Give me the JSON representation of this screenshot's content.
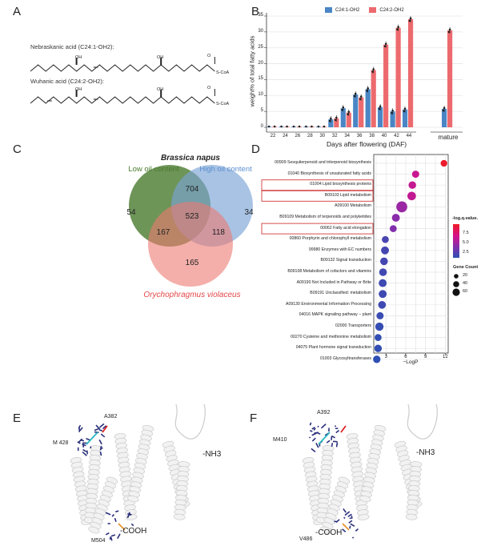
{
  "panels": {
    "a": "A",
    "b": "B",
    "c": "C",
    "d": "D",
    "e": "E",
    "f": "F"
  },
  "structures": {
    "nebraskanic": {
      "name": "Nebraskanic acid (C24:1-OH2):",
      "oh": "OH",
      "o": "O",
      "coa": "S-CoA"
    },
    "wuhanic": {
      "name": "Wuhanic acid (C24:2-OH2):",
      "oh": "OH",
      "o": "O",
      "coa": "S-CoA"
    }
  },
  "venn": {
    "title": "Brassica napus",
    "sets": [
      {
        "name": "Low oil content",
        "color": "#4a7a2e"
      },
      {
        "name": "High oil content",
        "color": "#5b8fd0"
      },
      {
        "name": "Orychophragmus violaceus",
        "color": "#e5474a"
      }
    ],
    "counts": {
      "low_only": "54",
      "low_high": "704",
      "high_only": "34",
      "all": "523",
      "low_ory": "167",
      "high_ory": "118",
      "ory_only": "165"
    }
  },
  "chart_data": [
    {
      "type": "bar",
      "xlabel": "Days after flowering (DAF)",
      "ylabel": "weight% of total fatty acids",
      "categories": [
        "22",
        "24",
        "26",
        "28",
        "30",
        "32",
        "34",
        "36",
        "38",
        "40",
        "42",
        "44",
        "mature"
      ],
      "ylim": [
        0,
        35
      ],
      "yticks": [
        "0",
        "5",
        "10",
        "15",
        "20",
        "25",
        "30",
        "35"
      ],
      "grid": "horizontal",
      "legend": "top",
      "series": [
        {
          "name": "C24:1-OH2",
          "color": "#4a86c5",
          "values": [
            0,
            0,
            0,
            0,
            0,
            2.5,
            6,
            10.3,
            12,
            6.3,
            5,
            5.6,
            5.8
          ]
        },
        {
          "name": "C24:2-OH2",
          "color": "#ec6a6e",
          "values": [
            0,
            0,
            0,
            0,
            0,
            2.8,
            4.6,
            9.4,
            18,
            26,
            31.3,
            34,
            30.5
          ]
        }
      ]
    },
    {
      "type": "scatter",
      "xlabel": "−LogP",
      "xticks": [
        "3",
        "6",
        "9",
        "12"
      ],
      "xlim": [
        1.1,
        12.3
      ],
      "categories": [
        "00909 Sesquiterpenoid and triterpenoid biosynthesis",
        "01040 Biosynthesis of unsaturated fatty acids",
        "01004 Lipid biosynthesis proteins",
        "B09103 Lipid metabolism",
        "A09100 Metabolism",
        "B09109 Metabolism of terpenoids and polyketides",
        "00062 Fatty acid elongation",
        "00860 Porphyrin and chlorophyll metabolism",
        "99980 Enzymes with EC numbers",
        "B09132 Signal transduction",
        "B09108 Metabolism of cofactors and vitamins",
        "A09190 Not Included in Pathway or Brite",
        "B09191 Unclassified: metabolism",
        "A09130 Environmental Information Processing",
        "04016 MAPK signaling pathway − plant",
        "02000 Transporters",
        "00270 Cysteine and methionine metabolism",
        "04075 Plant hormone signal transduction",
        "01003 Glycosyltransferases"
      ],
      "highlighted": [
        "01004 Lipid biosynthesis proteins",
        "B09103 Lipid metabolism",
        "00062 Fatty acid elongation"
      ],
      "logP": [
        11.8,
        7.5,
        7.0,
        6.9,
        5.4,
        4.5,
        4.1,
        2.9,
        2.85,
        2.7,
        2.55,
        2.5,
        2.5,
        2.4,
        2.1,
        2.0,
        1.8,
        1.8,
        1.6
      ],
      "qvalue": [
        8.8,
        6.6,
        6.4,
        6.3,
        4.8,
        4.2,
        3.9,
        2.0,
        1.9,
        1.8,
        1.7,
        1.6,
        1.6,
        1.6,
        1.4,
        1.3,
        1.2,
        1.2,
        1.1
      ],
      "gene_count": [
        8,
        12,
        15,
        25,
        60,
        18,
        10,
        10,
        18,
        16,
        16,
        18,
        18,
        16,
        12,
        22,
        10,
        14,
        14
      ],
      "legend": {
        "color_title": "-log.q.value.",
        "color_ticks": [
          "7.5",
          "5.0",
          "2.5"
        ],
        "size_title": "Gene Count",
        "size_ticks": [
          "20",
          "40",
          "60"
        ],
        "placement": "right"
      }
    }
  ],
  "protein_e": {
    "nterm": "-NH3",
    "cterm": "-COOH",
    "res1": "A382",
    "res2": "M 428",
    "res3": "M504"
  },
  "protein_f": {
    "nterm": "-NH3",
    "cterm": "-COOH",
    "res1": "A392",
    "res2": "M410",
    "res3": "V486"
  }
}
